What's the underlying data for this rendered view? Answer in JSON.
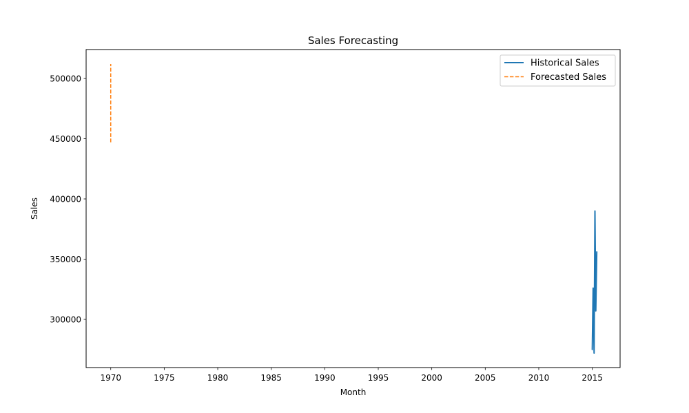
{
  "chart_data": {
    "type": "line",
    "title": "Sales Forecasting",
    "xlabel": "Month",
    "ylabel": "Sales",
    "xlim": [
      1967.7,
      2017.6
    ],
    "ylim": [
      260000,
      524000
    ],
    "xticks": [
      1970,
      1975,
      1980,
      1985,
      1990,
      1995,
      2000,
      2005,
      2010,
      2015
    ],
    "yticks": [
      300000,
      350000,
      400000,
      450000,
      500000
    ],
    "grid": false,
    "legend_position": "top-right",
    "series": [
      {
        "name": "Historical Sales",
        "style": "solid",
        "color": "#1f77b4",
        "x": [
          2015.0,
          2015.08,
          2015.17,
          2015.25,
          2015.33,
          2015.42
        ],
        "y": [
          275000,
          326000,
          272000,
          390000,
          307000,
          356000
        ]
      },
      {
        "name": "Forecasted Sales",
        "style": "dashed",
        "color": "#ff7f0e",
        "x": [
          1970.0,
          1970.0,
          1970.0,
          1970.0,
          1970.0
        ],
        "y": [
          447000,
          470000,
          488000,
          500000,
          512000
        ]
      }
    ]
  }
}
